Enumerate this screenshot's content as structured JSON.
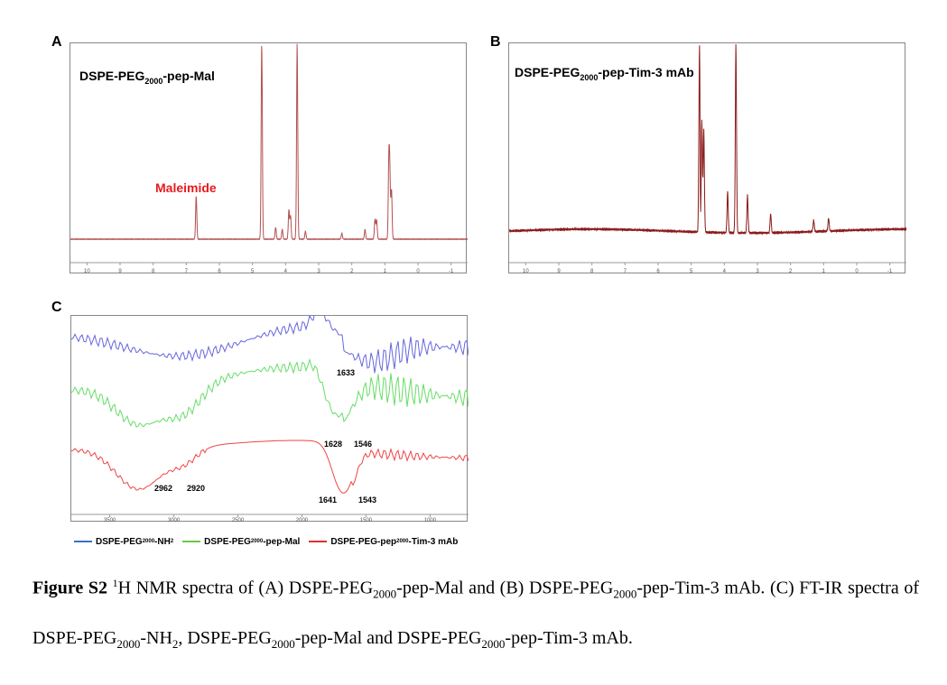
{
  "panels": {
    "a": {
      "letter": "A",
      "title": "DSPE-PEG2000-pep-Mal",
      "title_parts": [
        "DSPE-PEG",
        "2000",
        "-pep-Mal"
      ],
      "annotation": "Maleimide",
      "annotation_color": "#e8191e",
      "line_color": "#b35050"
    },
    "b": {
      "letter": "B",
      "title": "DSPE-PEG2000-pep-Tim-3 mAb",
      "title_parts": [
        "DSPE-PEG",
        "2000",
        "-pep-Tim-3 mAb"
      ],
      "line_color": "#8b1a1a"
    },
    "c": {
      "letter": "C"
    }
  },
  "chart_data": [
    {
      "type": "line",
      "panel": "A",
      "title": "DSPE-PEG2000-pep-Mal",
      "xlabel": "",
      "ylabel": "",
      "xlim": [
        10.5,
        -1.5
      ],
      "x_ticks": [
        "10",
        "9",
        "8",
        "7",
        "6",
        "5",
        "4",
        "3",
        "2",
        "1",
        "0",
        "-1"
      ],
      "peaks": [
        {
          "ppm": 6.7,
          "height": 0.22
        },
        {
          "ppm": 4.72,
          "height": 1.0
        },
        {
          "ppm": 3.65,
          "height": 1.0
        },
        {
          "ppm": 3.9,
          "height": 0.15
        },
        {
          "ppm": 3.85,
          "height": 0.12
        },
        {
          "ppm": 4.3,
          "height": 0.06
        },
        {
          "ppm": 4.1,
          "height": 0.05
        },
        {
          "ppm": 3.4,
          "height": 0.04
        },
        {
          "ppm": 2.3,
          "height": 0.03
        },
        {
          "ppm": 1.6,
          "height": 0.05
        },
        {
          "ppm": 1.3,
          "height": 0.1
        },
        {
          "ppm": 1.25,
          "height": 0.1
        },
        {
          "ppm": 0.88,
          "height": 0.38
        },
        {
          "ppm": 0.85,
          "height": 0.3
        },
        {
          "ppm": 0.8,
          "height": 0.25
        }
      ],
      "annotations": [
        "Maleimide"
      ]
    },
    {
      "type": "line",
      "panel": "B",
      "title": "DSPE-PEG2000-pep-Tim-3 mAb",
      "xlabel": "",
      "ylabel": "",
      "xlim": [
        10.5,
        -1.5
      ],
      "x_ticks": [
        "10",
        "9",
        "8",
        "7",
        "6",
        "5",
        "4",
        "3",
        "2",
        "1",
        "0",
        "-1"
      ],
      "peaks": [
        {
          "ppm": 4.75,
          "height": 1.0
        },
        {
          "ppm": 4.68,
          "height": 0.6
        },
        {
          "ppm": 4.62,
          "height": 0.55
        },
        {
          "ppm": 3.65,
          "height": 1.0
        },
        {
          "ppm": 3.9,
          "height": 0.22
        },
        {
          "ppm": 3.3,
          "height": 0.2
        },
        {
          "ppm": 2.6,
          "height": 0.1
        },
        {
          "ppm": 1.3,
          "height": 0.06
        },
        {
          "ppm": 0.85,
          "height": 0.07
        }
      ],
      "negative_peaks": [
        {
          "ppm": 4.72,
          "depth": 0.15
        }
      ]
    },
    {
      "type": "line",
      "panel": "C",
      "title": "",
      "xlabel": "",
      "ylabel": "",
      "xlim": [
        3800,
        700
      ],
      "x_ticks": [
        "3500",
        "3000",
        "2500",
        "2000",
        "1500",
        "1000"
      ],
      "series": [
        {
          "name": "DSPE-PEG2000-NH2",
          "color": "#6666dd",
          "annotations": [
            "1633"
          ]
        },
        {
          "name": "DSPE-PEG2000-pep-Mal",
          "color": "#66dd66",
          "annotations": [
            "1628",
            "1546"
          ]
        },
        {
          "name": "DSPE-PEG-pep2000-Tim-3 mAb",
          "color": "#ee4444",
          "annotations": [
            "2962",
            "2920",
            "1641",
            "1543"
          ]
        }
      ]
    }
  ],
  "legend": [
    {
      "parts": [
        "DSPE-PEG",
        "2000",
        "-NH",
        "2",
        ""
      ],
      "color": "#3a6fc4"
    },
    {
      "parts": [
        "DSPE-PEG",
        "2000",
        "-pep-Mal",
        "",
        ""
      ],
      "color": "#66cc44"
    },
    {
      "parts": [
        "DSPE-PEG-pep",
        "2000",
        "-Tim-3 mAb",
        "",
        ""
      ],
      "color": "#e03030"
    }
  ],
  "caption": {
    "label": "Figure S2",
    "sup": "1",
    "t1": "H NMR spectra of (A) DSPE-PEG",
    "s1": "2000",
    "t2": "-pep-Mal and (B) DSPE-PEG",
    "s2": "2000",
    "t3": "-pep-Tim-3 mAb. (C) FT-IR spectra of DSPE-PEG",
    "s3": "2000",
    "t4": "-NH",
    "s4": "2",
    "t5": ", DSPE-PEG",
    "s5": "2000",
    "t6": "-pep-Mal and DSPE-PEG",
    "s6": "2000",
    "t7": "-pep-Tim-3 mAb."
  }
}
